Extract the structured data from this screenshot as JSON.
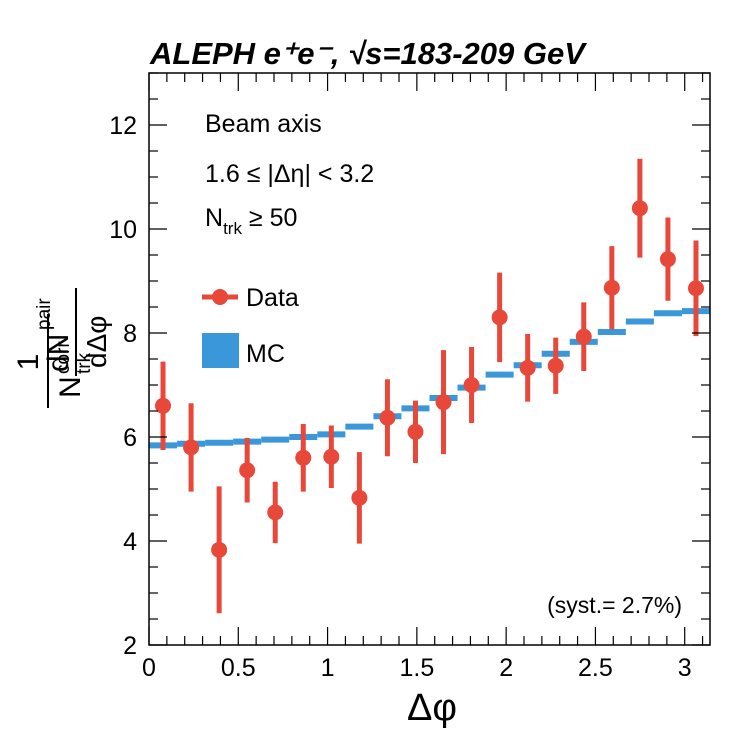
{
  "chart_data": {
    "type": "scatter",
    "title": "ALEPH e⁺e⁻,  √s=183-209 GeV",
    "xlabel": "Δφ",
    "ylabel": {
      "numerator_left": "1",
      "denominator_left": "N",
      "denominator_left_sup": "corr",
      "denominator_left_sub": "trk",
      "numerator_right": "dN",
      "numerator_right_sup": "pair",
      "denominator_right": "dΔφ"
    },
    "xlim": [
      0,
      3.1416
    ],
    "ylim": [
      2,
      13
    ],
    "x_ticks": [
      0,
      0.5,
      1,
      1.5,
      2,
      2.5,
      3
    ],
    "x_tick_labels": [
      "0",
      "0.5",
      "1",
      "1.5",
      "2",
      "2.5",
      "3"
    ],
    "y_ticks": [
      2,
      4,
      6,
      8,
      10,
      12
    ],
    "y_tick_labels": [
      "2",
      "4",
      "6",
      "8",
      "10",
      "12"
    ],
    "grid": false,
    "colors": {
      "data": "#e8483a",
      "mc": "#3a97d9",
      "axis": "#000000"
    },
    "annotations": {
      "beam": "Beam axis",
      "eta_range": "1.6 ≤ |Δη| < 3.2",
      "ntrk_main": "N",
      "ntrk_sub": "trk",
      "ntrk_cut": " ≥ 50",
      "syst": "(syst.= 2.7%)"
    },
    "legend": {
      "placement": "middle-left",
      "entries": [
        {
          "label": "Data",
          "marker": "circle-with-errorbar"
        },
        {
          "label": "MC",
          "marker": "box"
        }
      ]
    },
    "series": [
      {
        "name": "Data",
        "kind": "points-with-errors",
        "x": [
          0.0785,
          0.2356,
          0.3927,
          0.5498,
          0.7069,
          0.8639,
          1.021,
          1.1781,
          1.3352,
          1.4923,
          1.6493,
          1.8064,
          1.9635,
          2.1206,
          2.2777,
          2.4347,
          2.5918,
          2.7489,
          2.906,
          3.0631
        ],
        "y": [
          6.6,
          5.8,
          3.83,
          5.36,
          4.55,
          5.6,
          5.62,
          4.83,
          6.37,
          6.1,
          6.67,
          7.0,
          8.3,
          7.33,
          7.37,
          7.93,
          8.87,
          10.4,
          9.42,
          8.86
        ],
        "err": [
          0.85,
          0.85,
          1.22,
          0.62,
          0.59,
          0.65,
          0.6,
          0.88,
          0.74,
          0.6,
          1.0,
          0.73,
          0.86,
          0.65,
          0.54,
          0.66,
          0.8,
          0.95,
          0.8,
          0.92
        ]
      },
      {
        "name": "MC",
        "kind": "step",
        "x_edges": [
          0,
          0.1571,
          0.3142,
          0.4712,
          0.6283,
          0.7854,
          0.9425,
          1.0996,
          1.2566,
          1.4137,
          1.5708,
          1.7279,
          1.885,
          2.042,
          2.1991,
          2.3562,
          2.5133,
          2.6704,
          2.8274,
          2.9845,
          3.1416
        ],
        "values": [
          5.84,
          5.87,
          5.89,
          5.91,
          5.95,
          6.0,
          6.05,
          6.2,
          6.4,
          6.55,
          6.75,
          6.95,
          7.2,
          7.38,
          7.6,
          7.83,
          8.02,
          8.22,
          8.38,
          8.42
        ]
      }
    ]
  }
}
